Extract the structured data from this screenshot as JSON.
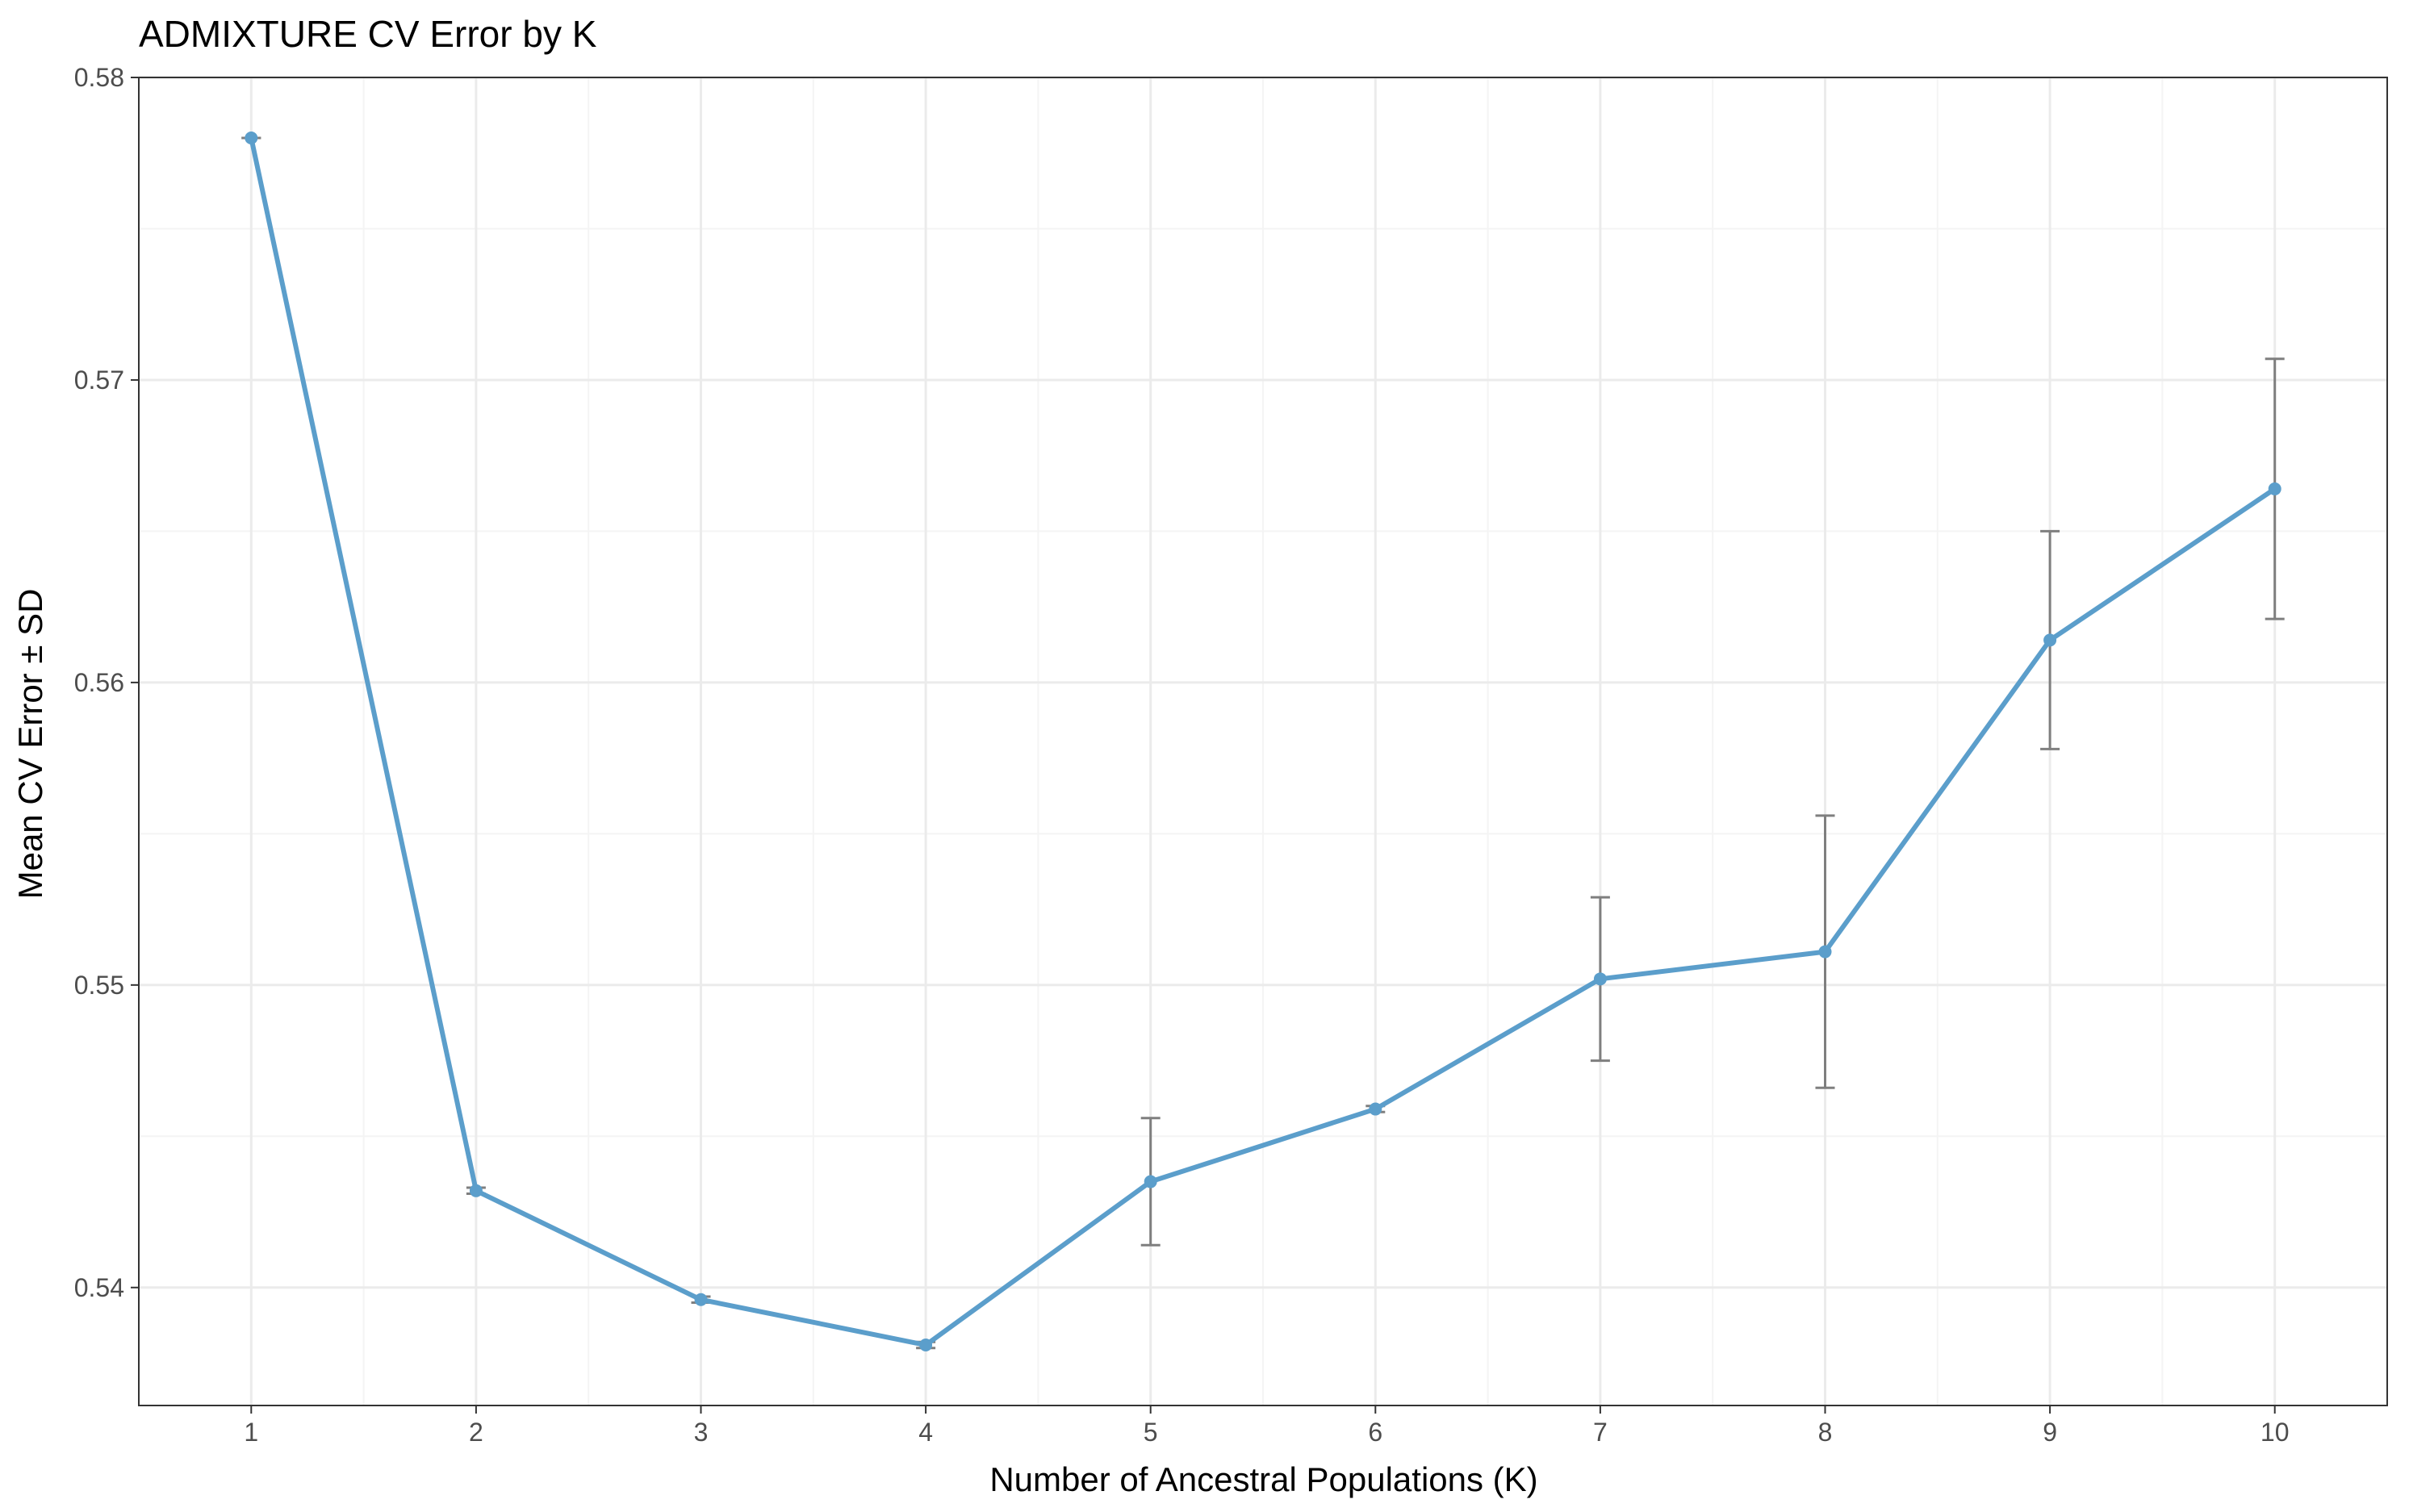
{
  "chart_data": {
    "type": "line",
    "title": "ADMIXTURE CV Error by K",
    "xlabel": "Number of Ancestral Populations (K)",
    "ylabel": "Mean CV Error ± SD",
    "x": [
      1,
      2,
      3,
      4,
      5,
      6,
      7,
      8,
      9,
      10
    ],
    "x_tick_labels": [
      "1",
      "2",
      "3",
      "4",
      "5",
      "6",
      "7",
      "8",
      "9",
      "10"
    ],
    "y_ticks": [
      0.54,
      0.55,
      0.56,
      0.57,
      0.58
    ],
    "y_tick_labels": [
      "0.54",
      "0.55",
      "0.56",
      "0.57",
      "0.58"
    ],
    "xlim": [
      0.5,
      10.5
    ],
    "ylim": [
      0.5361,
      0.58
    ],
    "grid": true,
    "series": [
      {
        "values": [
          0.578,
          0.5432,
          0.5396,
          0.5381,
          0.5435,
          0.5459,
          0.5502,
          0.5511,
          0.5614,
          0.5664
        ],
        "sd": [
          0.0,
          0.0001,
          0.0001,
          0.0001,
          0.0021,
          0.0001,
          0.0027,
          0.0045,
          0.0036,
          0.0043
        ]
      }
    ],
    "colors": {
      "line": "#5b9ecb",
      "error_bar": "#7f7f7f",
      "grid_major": "#ebebeb",
      "grid_minor": "#f4f4f4",
      "panel_border": "#333333"
    }
  }
}
